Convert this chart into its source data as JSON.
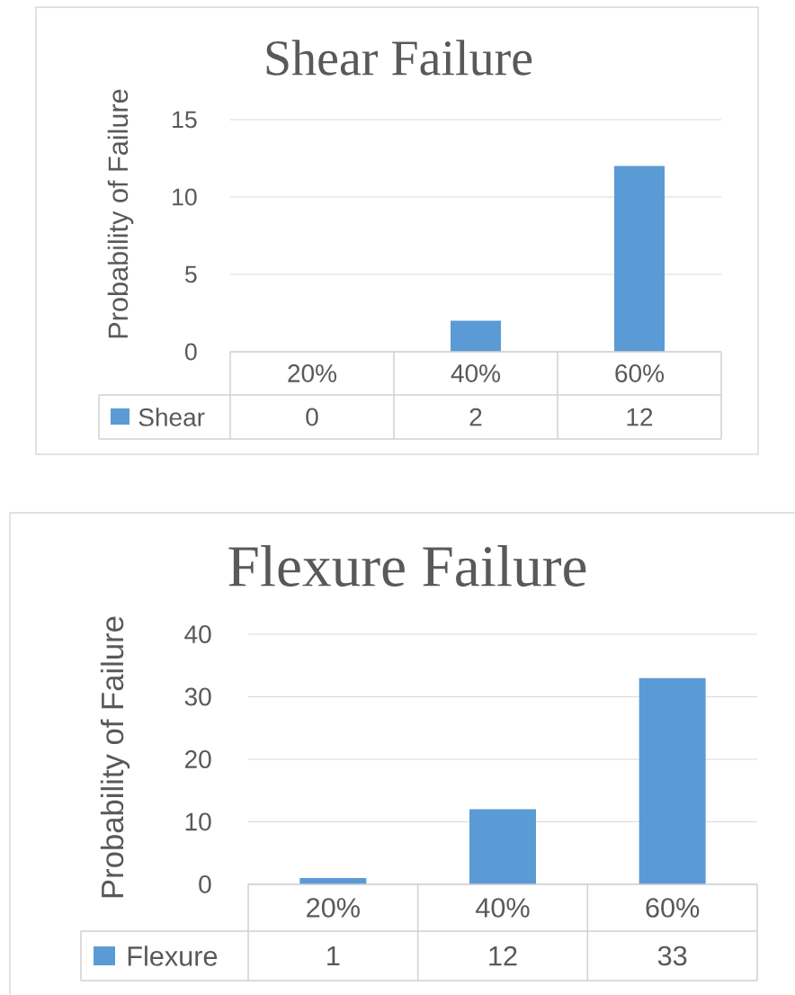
{
  "chart_data": [
    {
      "type": "bar",
      "title": "Shear Failure",
      "ylabel": "Probability of Failure",
      "categories": [
        "20%",
        "40%",
        "60%"
      ],
      "series": [
        {
          "name": "Shear",
          "color": "#5b9bd5",
          "values": [
            0,
            2,
            12
          ]
        }
      ],
      "ylim": [
        0,
        15
      ],
      "yticks": [
        0,
        5,
        10,
        15
      ],
      "grid": "y",
      "legend": "bottom",
      "data_labels": true
    },
    {
      "type": "bar",
      "title": "Flexure Failure",
      "ylabel": "Probability of Failure",
      "categories": [
        "20%",
        "40%",
        "60%"
      ],
      "series": [
        {
          "name": "Flexure",
          "color": "#5b9bd5",
          "values": [
            1,
            12,
            33
          ]
        }
      ],
      "ylim": [
        0,
        40
      ],
      "yticks": [
        0,
        10,
        20,
        30,
        40
      ],
      "grid": "y",
      "legend": "bottom",
      "data_labels": true
    }
  ]
}
